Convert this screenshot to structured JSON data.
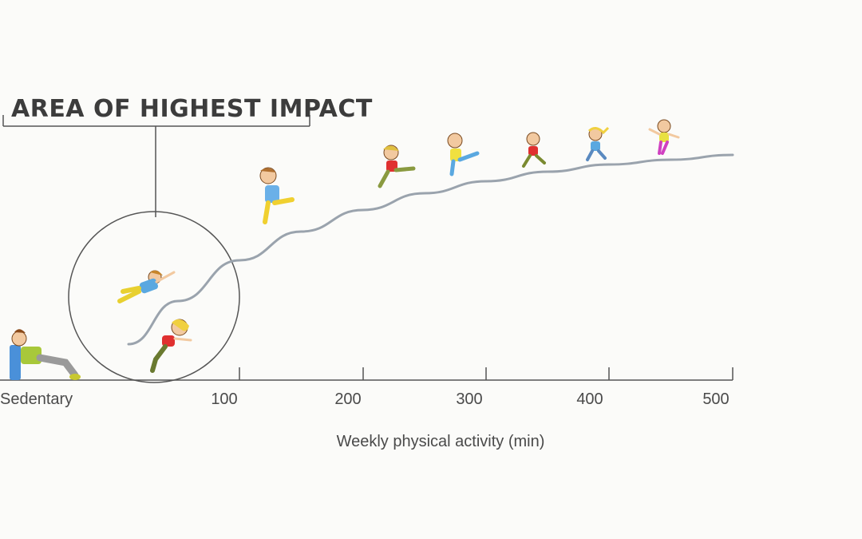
{
  "chart_data": {
    "type": "line",
    "xlabel": "Weekly physical activity (min)",
    "x_ticks": [
      "Sedentary",
      "100",
      "200",
      "300",
      "400",
      "500"
    ],
    "xlim": [
      0,
      500
    ],
    "series": [
      {
        "x": [
          10,
          50,
          100,
          150,
          200,
          250,
          300,
          350,
          400,
          450,
          500
        ],
        "y": [
          0.15,
          0.33,
          0.5,
          0.62,
          0.71,
          0.78,
          0.83,
          0.87,
          0.9,
          0.92,
          0.94
        ]
      }
    ],
    "annotations": [
      {
        "text": "AREA OF HIGHEST IMPACT",
        "target": "circled region of the curve near the low-activity end"
      }
    ],
    "figures": [
      "sedentary-person-icon",
      "jumping-person-icon",
      "running-person-icon",
      "jumping-person-icon",
      "kicking-person-icon",
      "kicking-person-icon",
      "running-person-icon",
      "running-person-icon",
      "dancing-person-icon"
    ],
    "colors": {
      "curve": "#9aa3ad",
      "axis": "#555555",
      "text": "#4a4a4a",
      "circle": "#555555"
    }
  }
}
